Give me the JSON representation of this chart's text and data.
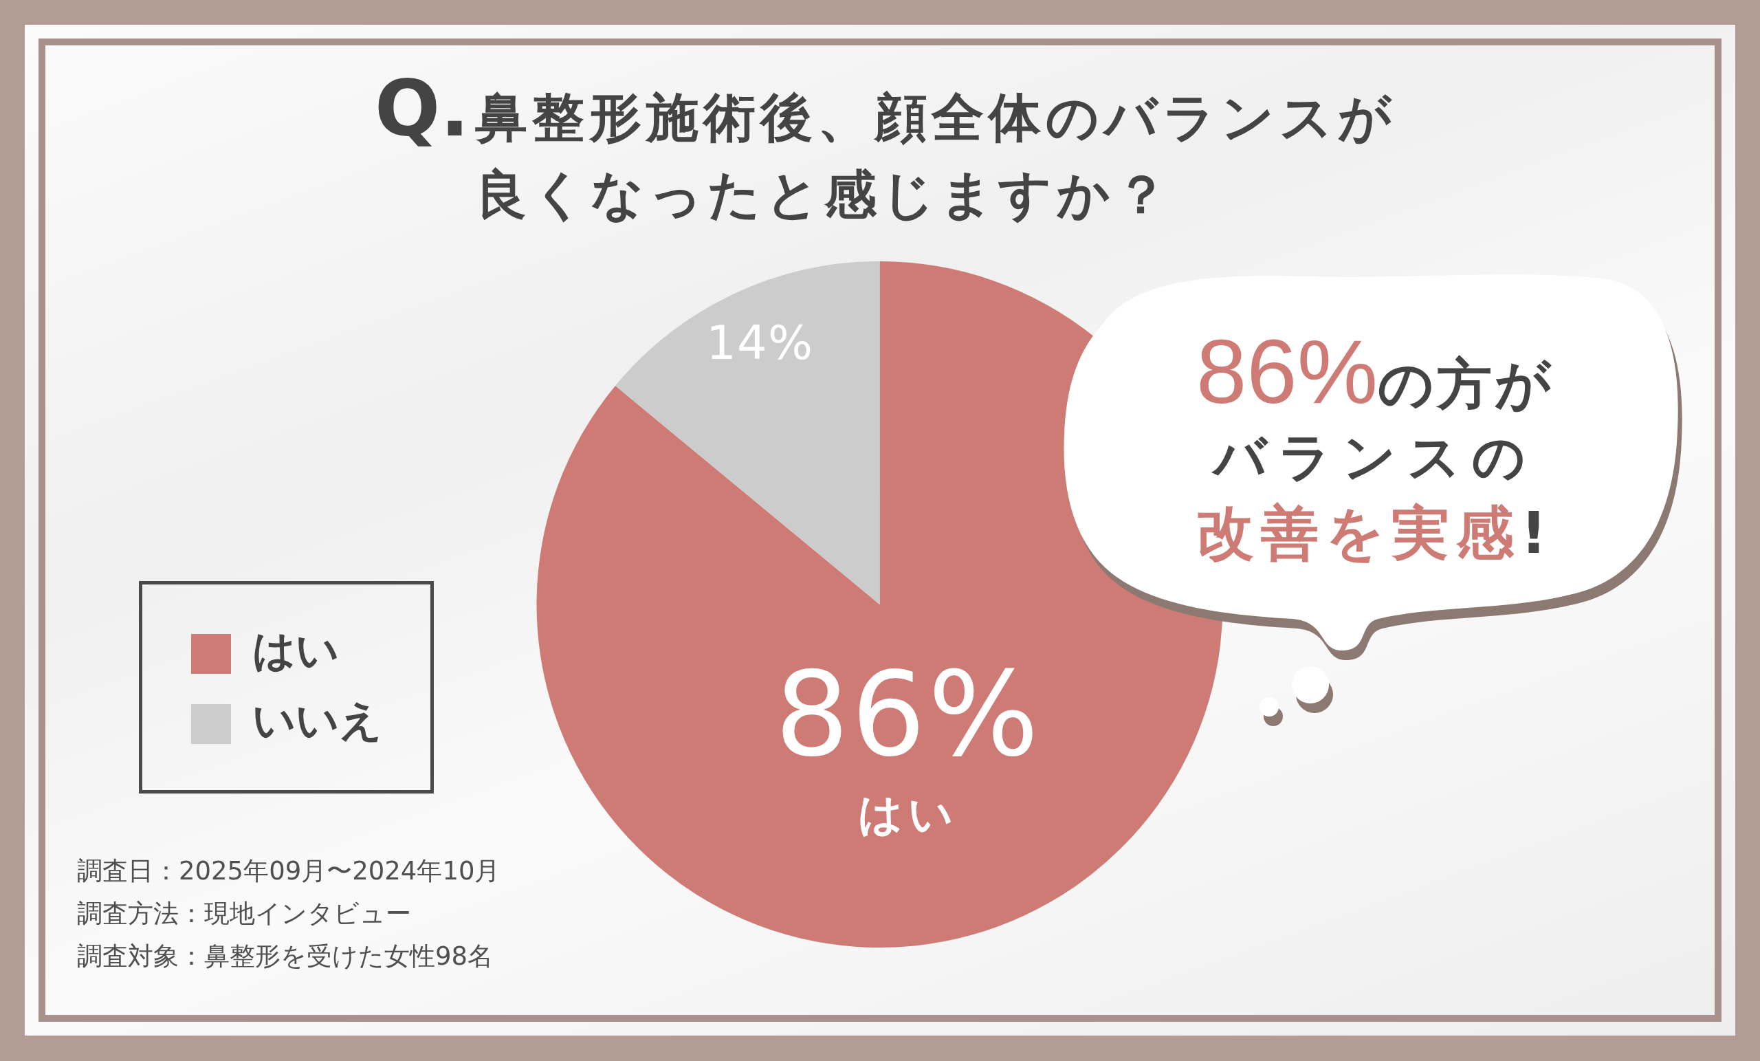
{
  "chart_data": {
    "type": "pie",
    "title": "Q.鼻整形施術後、顔全体のバランスが良くなったと感じますか？",
    "categories": [
      "はい",
      "いいえ"
    ],
    "values": [
      86,
      14
    ],
    "colors": [
      "#cf7b75",
      "#cccccc"
    ],
    "value_labels": [
      "86%\nはい",
      "14%"
    ],
    "legend": "left",
    "annotations": [
      "86%の方が",
      "バランスの",
      "改善を実感!",
      "調査日：2025年09月〜2024年10月",
      "調査方法：現地インタビュー",
      "調査対象：鼻整形を受けた女性98名"
    ]
  }
}
